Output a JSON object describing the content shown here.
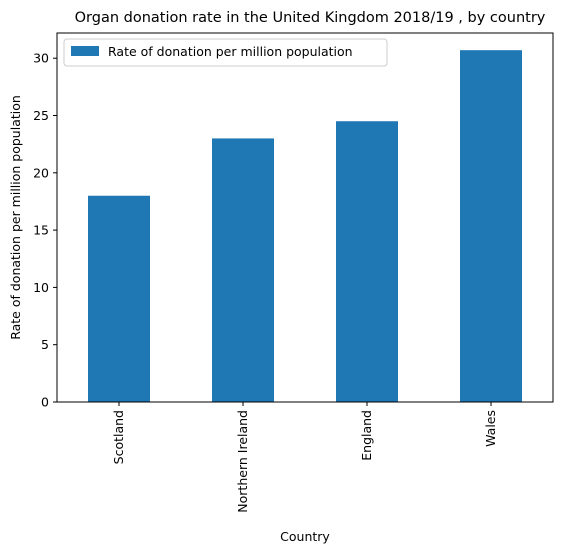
{
  "chart_data": {
    "type": "bar",
    "title": "Organ donation rate in the United Kingdom 2018/19 , by country",
    "xlabel": "Country",
    "ylabel": "Rate of donation per million population",
    "categories": [
      "Scotland",
      "Northern Ireland",
      "England",
      "Wales"
    ],
    "series": [
      {
        "name": "Rate of donation per million population",
        "values": [
          18.0,
          23.0,
          24.5,
          30.7
        ],
        "color": "#1f77b4"
      }
    ],
    "ylim": [
      0,
      32.2
    ],
    "yticks": [
      0,
      5,
      10,
      15,
      20,
      25,
      30
    ],
    "grid": false,
    "legend_position": "top-left"
  }
}
